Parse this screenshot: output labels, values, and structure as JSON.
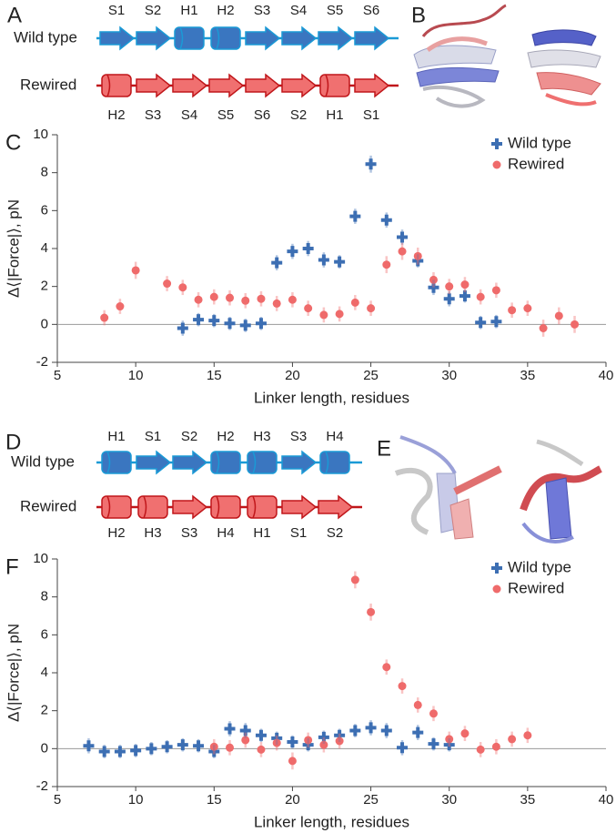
{
  "figure": {
    "panel_labels": [
      "A",
      "B",
      "C",
      "D",
      "E",
      "F"
    ],
    "topologies": [
      {
        "rows": [
          {
            "name": "Wild type",
            "elements": [
              "S1",
              "S2",
              "H1",
              "H2",
              "S3",
              "S4",
              "S5",
              "S6"
            ]
          },
          {
            "name": "Rewired",
            "elements": [
              "H2",
              "S3",
              "S4",
              "S5",
              "S6",
              "S2",
              "H1",
              "S1"
            ]
          }
        ]
      },
      {
        "rows": [
          {
            "name": "Wild type",
            "elements": [
              "H1",
              "S1",
              "S2",
              "H2",
              "H3",
              "S3",
              "H4"
            ]
          },
          {
            "name": "Rewired",
            "elements": [
              "H2",
              "H3",
              "S3",
              "H4",
              "H1",
              "S1",
              "S2"
            ]
          }
        ]
      }
    ]
  },
  "chart_data": [
    {
      "type": "scatter",
      "x_label": "Linker length, residues",
      "y_label": "Δ⟨|Force|⟩, pN",
      "xlim": [
        5,
        40
      ],
      "ylim": [
        -2,
        10
      ],
      "xticks": [
        5,
        10,
        15,
        20,
        25,
        30,
        35,
        40
      ],
      "yticks": [
        -2,
        0,
        2,
        4,
        6,
        8,
        10
      ],
      "zero_line": true,
      "legend": "upper right",
      "series": [
        {
          "name": "Wild type",
          "color": "#3d6fb3",
          "marker": "plus",
          "x": [
            13,
            14,
            15,
            16,
            17,
            18,
            19,
            20,
            21,
            22,
            23,
            24,
            25,
            26,
            27,
            28,
            29,
            30,
            31,
            32,
            33
          ],
          "values": [
            -0.2,
            0.25,
            0.2,
            0.05,
            -0.05,
            0.05,
            3.25,
            3.85,
            4.0,
            3.4,
            3.3,
            5.7,
            8.45,
            5.5,
            4.6,
            3.35,
            1.95,
            1.35,
            1.5,
            0.1,
            0.15
          ],
          "errors": [
            0.4,
            0.35,
            0.35,
            0.35,
            0.35,
            0.35,
            0.4,
            0.4,
            0.4,
            0.4,
            0.35,
            0.4,
            0.45,
            0.4,
            0.4,
            0.35,
            0.4,
            0.4,
            0.35,
            0.35,
            0.35
          ]
        },
        {
          "name": "Rewired",
          "color": "#ef6b6b",
          "marker": "circle",
          "x": [
            8,
            9,
            10,
            12,
            13,
            14,
            15,
            16,
            17,
            18,
            19,
            20,
            21,
            22,
            23,
            24,
            25,
            26,
            27,
            28,
            29,
            30,
            31,
            32,
            33,
            34,
            35,
            36,
            37,
            38
          ],
          "values": [
            0.35,
            0.95,
            2.85,
            2.15,
            1.95,
            1.3,
            1.45,
            1.4,
            1.25,
            1.35,
            1.1,
            1.3,
            0.85,
            0.5,
            0.55,
            1.15,
            0.85,
            3.15,
            3.85,
            3.6,
            2.35,
            2.0,
            2.1,
            1.45,
            1.8,
            0.75,
            0.85,
            -0.2,
            0.45,
            0.0
          ],
          "errors": [
            0.4,
            0.4,
            0.45,
            0.4,
            0.4,
            0.4,
            0.4,
            0.4,
            0.4,
            0.4,
            0.4,
            0.4,
            0.4,
            0.4,
            0.4,
            0.4,
            0.4,
            0.45,
            0.45,
            0.45,
            0.4,
            0.4,
            0.4,
            0.4,
            0.4,
            0.4,
            0.4,
            0.45,
            0.45,
            0.45
          ]
        }
      ]
    },
    {
      "type": "scatter",
      "x_label": "Linker length, residues",
      "y_label": "Δ⟨|Force|⟩, pN",
      "xlim": [
        5,
        40
      ],
      "ylim": [
        -2,
        10
      ],
      "xticks": [
        5,
        10,
        15,
        20,
        25,
        30,
        35,
        40
      ],
      "yticks": [
        -2,
        0,
        2,
        4,
        6,
        8,
        10
      ],
      "zero_line": true,
      "legend": "upper right",
      "series": [
        {
          "name": "Wild type",
          "color": "#3d6fb3",
          "marker": "plus",
          "x": [
            7,
            8,
            9,
            10,
            11,
            12,
            13,
            14,
            15,
            16,
            17,
            18,
            19,
            20,
            21,
            22,
            23,
            24,
            25,
            26,
            27,
            28,
            29,
            30
          ],
          "values": [
            0.15,
            -0.15,
            -0.15,
            -0.1,
            0.0,
            0.1,
            0.2,
            0.15,
            -0.15,
            1.05,
            0.95,
            0.7,
            0.55,
            0.35,
            0.2,
            0.6,
            0.7,
            0.95,
            1.1,
            0.95,
            0.05,
            0.85,
            0.25,
            0.2
          ],
          "errors": [
            0.4,
            0.35,
            0.35,
            0.35,
            0.35,
            0.35,
            0.35,
            0.35,
            0.35,
            0.4,
            0.4,
            0.35,
            0.35,
            0.35,
            0.35,
            0.35,
            0.35,
            0.35,
            0.4,
            0.4,
            0.4,
            0.4,
            0.35,
            0.35
          ]
        },
        {
          "name": "Rewired",
          "color": "#ef6b6b",
          "marker": "circle",
          "x": [
            15,
            16,
            17,
            18,
            19,
            20,
            21,
            22,
            23,
            24,
            25,
            26,
            27,
            28,
            29,
            30,
            31,
            32,
            33,
            34,
            35
          ],
          "values": [
            0.1,
            0.05,
            0.45,
            -0.05,
            0.3,
            -0.65,
            0.45,
            0.2,
            0.4,
            8.9,
            7.2,
            4.3,
            3.3,
            2.3,
            1.85,
            0.5,
            0.8,
            -0.05,
            0.1,
            0.5,
            0.7
          ],
          "errors": [
            0.4,
            0.4,
            0.4,
            0.4,
            0.4,
            0.45,
            0.4,
            0.4,
            0.4,
            0.45,
            0.45,
            0.4,
            0.4,
            0.4,
            0.4,
            0.4,
            0.4,
            0.4,
            0.4,
            0.4,
            0.4
          ]
        }
      ]
    }
  ]
}
